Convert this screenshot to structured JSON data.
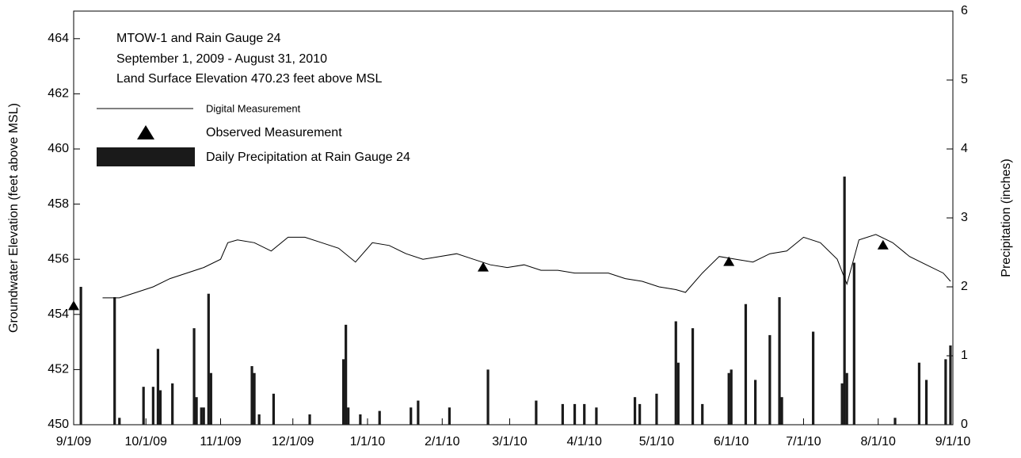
{
  "chart_data": {
    "type": "combo",
    "title": "MTOW-1 and Rain Gauge 24",
    "notes": [
      "September 1, 2009 - August 31, 2010",
      "Land Surface Elevation 470.23 feet above MSL"
    ],
    "ylabel": "Groundwater Elevation (feet above MSL)",
    "y2label": "Precipitation (inches)",
    "xlim": [
      "2009-09-01",
      "2010-09-01"
    ],
    "xticks": [
      {
        "value": "2009-09-01",
        "label": "9/1/09"
      },
      {
        "value": "2009-10-01",
        "label": "10/1/09"
      },
      {
        "value": "2009-11-01",
        "label": "11/1/09"
      },
      {
        "value": "2009-12-01",
        "label": "12/1/09"
      },
      {
        "value": "2010-01-01",
        "label": "1/1/10"
      },
      {
        "value": "2010-02-01",
        "label": "2/1/10"
      },
      {
        "value": "2010-03-01",
        "label": "3/1/10"
      },
      {
        "value": "2010-04-01",
        "label": "4/1/10"
      },
      {
        "value": "2010-05-01",
        "label": "5/1/10"
      },
      {
        "value": "2010-06-01",
        "label": "6/1/10"
      },
      {
        "value": "2010-07-01",
        "label": "7/1/10"
      },
      {
        "value": "2010-08-01",
        "label": "8/1/10"
      },
      {
        "value": "2010-09-01",
        "label": "9/1/10"
      }
    ],
    "ylim": [
      450,
      465
    ],
    "yticks": [
      450,
      452,
      454,
      456,
      458,
      460,
      462,
      464
    ],
    "y2lim": [
      0,
      6
    ],
    "y2ticks": [
      0,
      1,
      2,
      3,
      4,
      5,
      6
    ],
    "series": [
      {
        "name": "Digital Measurement",
        "type": "line",
        "color": "#000000",
        "x": [
          "2009-09-13",
          "2009-09-20",
          "2009-09-27",
          "2009-10-04",
          "2009-10-11",
          "2009-10-18",
          "2009-10-25",
          "2009-11-01",
          "2009-11-04",
          "2009-11-08",
          "2009-11-15",
          "2009-11-22",
          "2009-11-29",
          "2009-12-06",
          "2009-12-13",
          "2009-12-20",
          "2009-12-27",
          "2010-01-03",
          "2010-01-10",
          "2010-01-17",
          "2010-01-24",
          "2010-01-31",
          "2010-02-07",
          "2010-02-14",
          "2010-02-21",
          "2010-02-28",
          "2010-03-07",
          "2010-03-14",
          "2010-03-21",
          "2010-03-28",
          "2010-04-04",
          "2010-04-11",
          "2010-04-18",
          "2010-04-25",
          "2010-05-02",
          "2010-05-09",
          "2010-05-13",
          "2010-05-20",
          "2010-05-27",
          "2010-06-03",
          "2010-06-10",
          "2010-06-17",
          "2010-06-24",
          "2010-07-01",
          "2010-07-08",
          "2010-07-15",
          "2010-07-19",
          "2010-07-24",
          "2010-07-31",
          "2010-08-07",
          "2010-08-14",
          "2010-08-21",
          "2010-08-28",
          "2010-08-31"
        ],
        "values": [
          454.6,
          454.6,
          454.8,
          455.0,
          455.3,
          455.5,
          455.7,
          456.0,
          456.6,
          456.7,
          456.6,
          456.3,
          456.8,
          456.8,
          456.6,
          456.4,
          455.9,
          456.6,
          456.5,
          456.2,
          456.0,
          456.1,
          456.2,
          456.0,
          455.8,
          455.7,
          455.8,
          455.6,
          455.6,
          455.5,
          455.5,
          455.5,
          455.3,
          455.2,
          455.0,
          454.9,
          454.8,
          455.5,
          456.1,
          456.0,
          455.9,
          456.2,
          456.3,
          456.8,
          456.6,
          456.0,
          455.1,
          456.7,
          456.9,
          456.6,
          456.1,
          455.8,
          455.5,
          455.2
        ]
      },
      {
        "name": "Observed Measurement",
        "type": "marker",
        "color": "#000000",
        "x": [
          "2009-09-01",
          "2010-02-18",
          "2010-05-31",
          "2010-08-03"
        ],
        "values": [
          454.3,
          455.7,
          455.9,
          456.5
        ]
      },
      {
        "name": "Daily Precipitation at Rain Gauge 24",
        "type": "bar",
        "axis": "y2",
        "color": "#1a1a1a",
        "x": [
          "2009-09-04",
          "2009-09-18",
          "2009-09-20",
          "2009-09-30",
          "2009-10-04",
          "2009-10-06",
          "2009-10-07",
          "2009-10-12",
          "2009-10-21",
          "2009-10-22",
          "2009-10-24",
          "2009-10-25",
          "2009-10-27",
          "2009-10-28",
          "2009-11-14",
          "2009-11-15",
          "2009-11-17",
          "2009-11-23",
          "2009-12-08",
          "2009-12-22",
          "2009-12-23",
          "2009-12-24",
          "2009-12-29",
          "2010-01-06",
          "2010-01-19",
          "2010-01-22",
          "2010-02-04",
          "2010-02-20",
          "2010-03-12",
          "2010-03-23",
          "2010-03-28",
          "2010-04-01",
          "2010-04-06",
          "2010-04-22",
          "2010-04-24",
          "2010-05-01",
          "2010-05-09",
          "2010-05-10",
          "2010-05-16",
          "2010-05-20",
          "2010-05-31",
          "2010-06-01",
          "2010-06-07",
          "2010-06-11",
          "2010-06-17",
          "2010-06-21",
          "2010-06-22",
          "2010-07-05",
          "2010-07-17",
          "2010-07-18",
          "2010-07-19",
          "2010-07-22",
          "2010-08-08",
          "2010-08-18",
          "2010-08-21",
          "2010-08-29",
          "2010-08-31"
        ],
        "values": [
          2.0,
          1.85,
          0.1,
          0.55,
          0.55,
          1.1,
          0.5,
          0.6,
          1.4,
          0.4,
          0.25,
          0.25,
          1.9,
          0.75,
          0.85,
          0.75,
          0.15,
          0.45,
          0.15,
          0.95,
          1.45,
          0.25,
          0.15,
          0.2,
          0.25,
          0.35,
          0.25,
          0.8,
          0.35,
          0.3,
          0.3,
          0.3,
          0.25,
          0.4,
          0.3,
          0.45,
          1.5,
          0.9,
          1.4,
          0.3,
          0.75,
          0.8,
          1.75,
          0.65,
          1.3,
          1.85,
          0.4,
          1.35,
          0.6,
          3.6,
          0.75,
          2.35,
          0.1,
          0.9,
          0.65,
          0.95,
          1.15
        ]
      }
    ]
  }
}
